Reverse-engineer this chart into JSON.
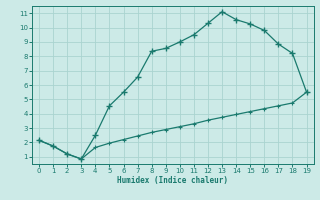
{
  "xlabel": "Humidex (Indice chaleur)",
  "background_color": "#cceae7",
  "grid_color": "#aad4d0",
  "line_color": "#1a7a6e",
  "xlim": [
    -0.5,
    19.5
  ],
  "ylim": [
    0.5,
    11.5
  ],
  "xticks": [
    0,
    1,
    2,
    3,
    4,
    5,
    6,
    7,
    8,
    9,
    10,
    11,
    12,
    13,
    14,
    15,
    16,
    17,
    18,
    19
  ],
  "yticks": [
    1,
    2,
    3,
    4,
    5,
    6,
    7,
    8,
    9,
    10,
    11
  ],
  "upper_x": [
    0,
    1,
    2,
    3,
    4,
    5,
    6,
    7,
    8,
    9,
    10,
    11,
    12,
    13,
    14,
    15,
    16,
    17,
    18,
    19
  ],
  "upper_y": [
    2.15,
    1.75,
    1.2,
    0.85,
    2.5,
    4.55,
    5.5,
    6.55,
    8.35,
    8.55,
    9.0,
    9.5,
    10.3,
    11.1,
    10.55,
    10.25,
    9.8,
    8.85,
    8.2,
    5.5
  ],
  "lower_x": [
    0,
    1,
    2,
    3,
    4,
    5,
    6,
    7,
    8,
    9,
    10,
    11,
    12,
    13,
    14,
    15,
    16,
    17,
    18,
    19
  ],
  "lower_y": [
    2.15,
    1.75,
    1.2,
    0.85,
    1.65,
    1.95,
    2.2,
    2.45,
    2.7,
    2.9,
    3.1,
    3.3,
    3.55,
    3.75,
    3.95,
    4.15,
    4.35,
    4.55,
    4.75,
    5.5
  ]
}
